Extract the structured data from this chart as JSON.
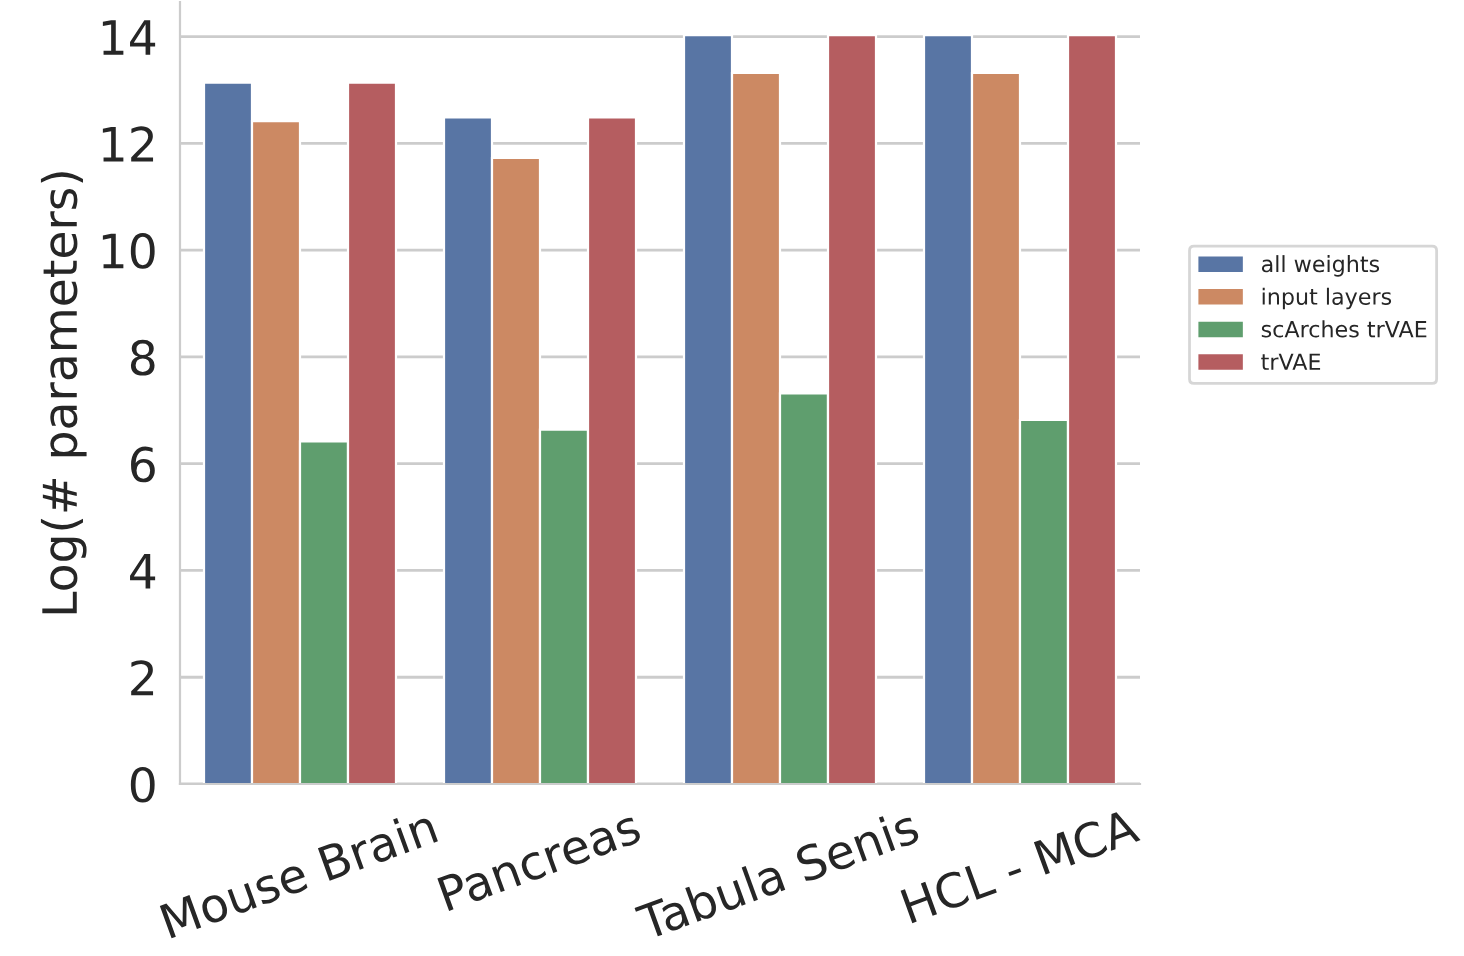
{
  "chart_data": {
    "type": "bar",
    "ylabel": "Log(# parameters)",
    "categories": [
      "Mouse Brain",
      "Pancreas",
      "Tabula Senis",
      "HCL - MCA"
    ],
    "series": [
      {
        "name": "all weights",
        "color": "#5875a4",
        "values": [
          13.14,
          12.49,
          14.03,
          14.03
        ]
      },
      {
        "name": "input layers",
        "color": "#cc8963",
        "values": [
          12.42,
          11.73,
          13.32,
          13.32
        ]
      },
      {
        "name": "scArches trVAE",
        "color": "#5f9e6e",
        "values": [
          6.42,
          6.64,
          7.32,
          6.82
        ]
      },
      {
        "name": "trVAE",
        "color": "#b55d60",
        "values": [
          13.14,
          12.49,
          14.03,
          14.03
        ]
      }
    ],
    "ylim": [
      0,
      14.65
    ],
    "yticks": [
      0,
      2,
      4,
      6,
      8,
      10,
      12,
      14
    ],
    "grid": "y",
    "legend": "right"
  }
}
